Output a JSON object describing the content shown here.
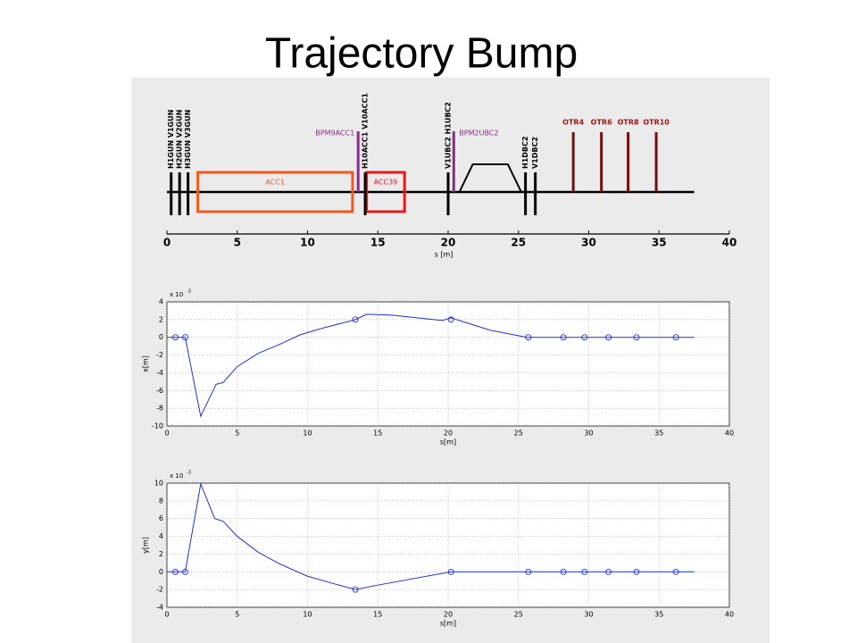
{
  "title": "Trajectory Bump",
  "chart_data": [
    {
      "type": "beamline",
      "xlabel": "s [m]",
      "xlim": [
        0,
        40
      ],
      "xticks": [
        0,
        5,
        10,
        15,
        20,
        25,
        30,
        35,
        40
      ],
      "beamline": [
        0,
        37.5
      ],
      "cavities": [
        {
          "label": "ACC1",
          "s": [
            2.2,
            13.2
          ],
          "color": "#f05a1e"
        },
        {
          "label": "ACC39",
          "s": [
            14.2,
            16.9
          ],
          "color": "#e01c1c"
        }
      ],
      "chicane": [
        20.8,
        25.2
      ],
      "elements": [
        {
          "label": "H1GUN V1GUN",
          "s": 0.3,
          "kind": "magnet",
          "color": "#000000"
        },
        {
          "label": "H2GUN V2GUN",
          "s": 0.9,
          "kind": "magnet",
          "color": "#000000"
        },
        {
          "label": "H3GUN V3GUN",
          "s": 1.5,
          "kind": "magnet",
          "color": "#000000"
        },
        {
          "label": "BPM9ACC1",
          "s": 13.6,
          "kind": "bpm",
          "label_side": "left",
          "color": "#8a2a8a"
        },
        {
          "label": "H10ACC1 V10ACC1",
          "s": 14.1,
          "kind": "magnet",
          "color": "#000000"
        },
        {
          "label": "V1UBC2 H1UBC2",
          "s": 20.0,
          "kind": "magnet",
          "color": "#000000"
        },
        {
          "label": "BPM2UBC2",
          "s": 20.4,
          "kind": "bpm",
          "label_side": "right",
          "color": "#8a2a8a"
        },
        {
          "label": "H1DBC2",
          "s": 25.5,
          "kind": "magnet",
          "color": "#000000"
        },
        {
          "label": "V1DBC2",
          "s": 26.2,
          "kind": "magnet",
          "color": "#000000"
        },
        {
          "label": "OTR4",
          "s": 28.9,
          "kind": "otr",
          "color": "#6e1010"
        },
        {
          "label": "OTR6",
          "s": 30.9,
          "kind": "otr",
          "color": "#6e1010"
        },
        {
          "label": "OTR8",
          "s": 32.8,
          "kind": "otr",
          "color": "#6e1010"
        },
        {
          "label": "OTR10",
          "s": 34.8,
          "kind": "otr",
          "color": "#6e1010"
        }
      ]
    },
    {
      "type": "line",
      "xlabel": "s[m]",
      "ylabel": "x[m]",
      "scale_text": "x 10",
      "scale_power": "-3",
      "xlim": [
        0,
        40
      ],
      "xticks": [
        0,
        5,
        10,
        15,
        20,
        25,
        30,
        35,
        40
      ],
      "ylim": [
        -10,
        4
      ],
      "yticks": [
        -10,
        -8,
        -6,
        -4,
        -2,
        0,
        2,
        4
      ],
      "grid": true,
      "series": [
        {
          "color": "#1f2fe0",
          "marker": "none",
          "x": [
            0,
            1.3,
            2.4,
            3.5,
            4,
            5,
            6.5,
            8,
            9.5,
            11,
            13.4,
            14.2,
            16,
            19.6,
            20.2,
            21,
            23,
            25.6,
            37.5
          ],
          "values": [
            0,
            0,
            -8.9,
            -5.3,
            -5.1,
            -3.3,
            -1.8,
            -0.8,
            0.3,
            1,
            2,
            2.6,
            2.5,
            1.9,
            2.2,
            1.8,
            0.8,
            0,
            0
          ]
        },
        {
          "color": "#1f2fe0",
          "marker": "circle",
          "x": [
            0.6,
            1.3,
            13.4,
            20.2,
            25.7,
            28.2,
            29.7,
            31.4,
            33.4,
            36.2
          ],
          "values": [
            0,
            0,
            2,
            2,
            0,
            0,
            0,
            0,
            0,
            0
          ]
        }
      ]
    },
    {
      "type": "line",
      "xlabel": "s[m]",
      "ylabel": "y[m]",
      "scale_text": "x 10",
      "scale_power": "-3",
      "xlim": [
        0,
        40
      ],
      "xticks": [
        0,
        5,
        10,
        15,
        20,
        25,
        30,
        35,
        40
      ],
      "ylim": [
        -4,
        10
      ],
      "yticks": [
        -4,
        -2,
        0,
        2,
        4,
        6,
        8,
        10
      ],
      "grid": true,
      "series": [
        {
          "color": "#1f2fe0",
          "marker": "none",
          "x": [
            0,
            1.3,
            2.4,
            3.4,
            4,
            5,
            6.5,
            8,
            10,
            12,
            13.4,
            15,
            20.2,
            37.5
          ],
          "values": [
            0,
            0,
            9.9,
            6,
            5.7,
            4,
            2.2,
            0.9,
            -0.5,
            -1.4,
            -2,
            -1.5,
            0,
            0
          ]
        },
        {
          "color": "#1f2fe0",
          "marker": "circle",
          "x": [
            0.6,
            1.3,
            13.4,
            20.2,
            25.7,
            28.2,
            29.7,
            31.4,
            33.4,
            36.2
          ],
          "values": [
            0,
            0,
            -2,
            0,
            0,
            0,
            0,
            0,
            0,
            0
          ]
        }
      ]
    }
  ]
}
